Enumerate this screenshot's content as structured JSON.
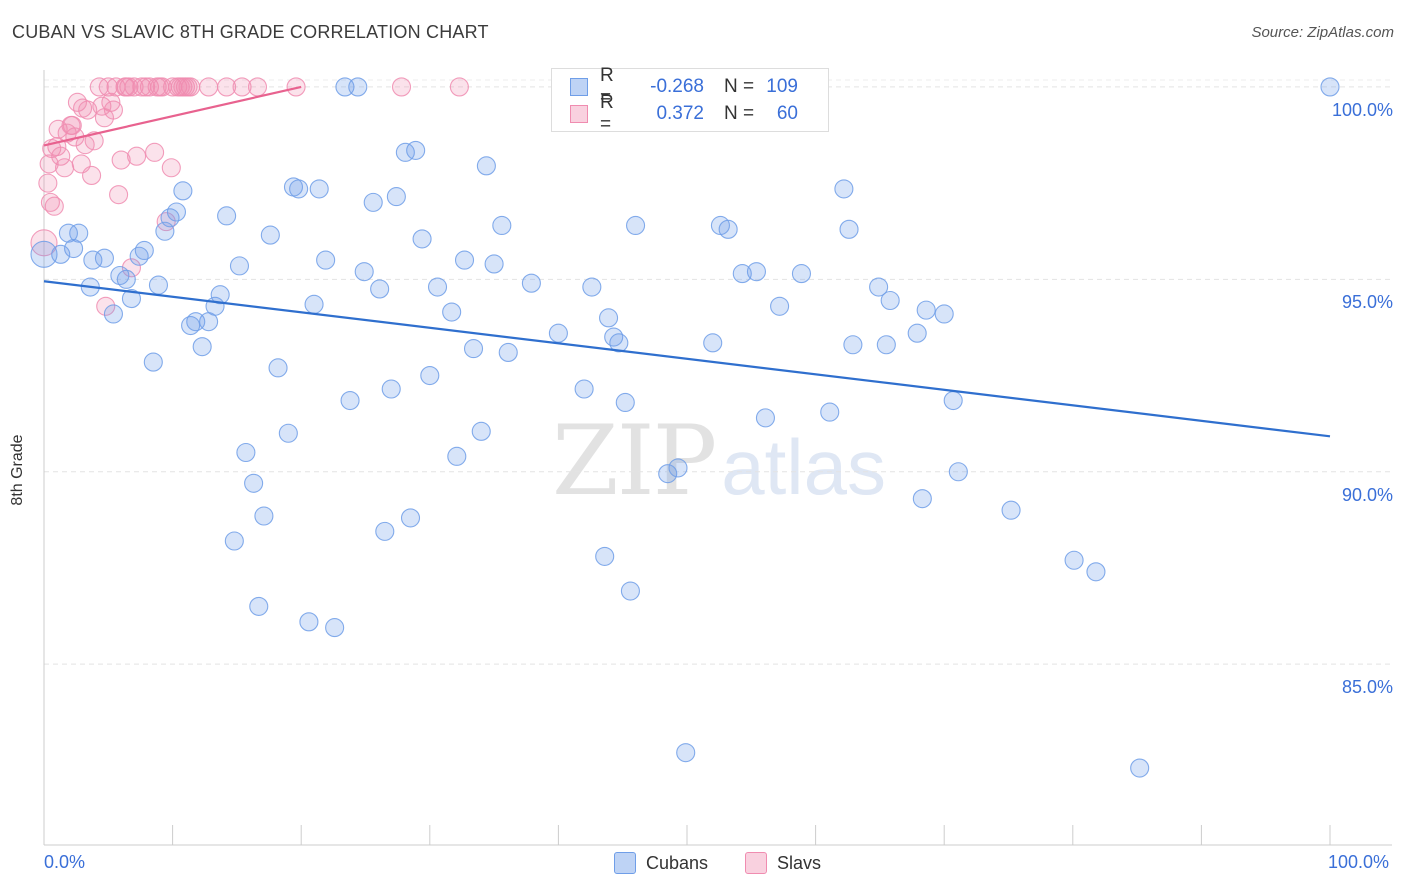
{
  "header": {
    "title": "CUBAN VS SLAVIC 8TH GRADE CORRELATION CHART",
    "source": "Source: ZipAtlas.com"
  },
  "watermark": {
    "zip": "ZIP",
    "atlas": "atlas"
  },
  "legend": {
    "rows": [
      {
        "r_label": "R =",
        "r_value": "-0.268",
        "n_label": "N =",
        "n_value": "109",
        "color": "#6f9ee8"
      },
      {
        "r_label": "R =",
        "r_value": "0.372",
        "n_label": "N =",
        "n_value": "60",
        "color": "#f08cb0"
      }
    ]
  },
  "bottom_legend": [
    {
      "label": "Cubans",
      "color": "#6f9ee8"
    },
    {
      "label": "Slavs",
      "color": "#f08cb0"
    }
  ],
  "chart_data": {
    "type": "scatter",
    "title": "CUBAN VS SLAVIC 8TH GRADE CORRELATION CHART",
    "xlabel": "",
    "ylabel": "8th Grade",
    "xlim": [
      0,
      100
    ],
    "ylim": [
      80.3,
      100.7
    ],
    "x_tick_labels": [
      "0.0%",
      "100.0%"
    ],
    "y_ticks": [
      100,
      95,
      90,
      85
    ],
    "y_tick_labels": [
      "100.0%",
      "95.0%",
      "90.0%",
      "85.0%"
    ],
    "grid": true,
    "legend_position": "top-center",
    "series": [
      {
        "name": "Cubans",
        "color": "#6f9ee8",
        "trend": {
          "x": [
            0,
            100
          ],
          "y": [
            94.95,
            90.92
          ]
        },
        "points": [
          [
            0,
            95.65
          ],
          [
            1.3,
            95.65
          ],
          [
            1.9,
            96.2
          ],
          [
            2.3,
            95.8
          ],
          [
            2.7,
            96.2
          ],
          [
            3.6,
            94.8
          ],
          [
            3.8,
            95.5
          ],
          [
            4.7,
            95.55
          ],
          [
            5.4,
            94.1
          ],
          [
            5.9,
            95.1
          ],
          [
            6.4,
            95.0
          ],
          [
            6.8,
            94.5
          ],
          [
            7.4,
            95.6
          ],
          [
            7.8,
            95.75
          ],
          [
            8.5,
            92.85
          ],
          [
            8.9,
            94.85
          ],
          [
            9.4,
            96.25
          ],
          [
            9.8,
            96.6
          ],
          [
            10.3,
            96.75
          ],
          [
            10.8,
            97.3
          ],
          [
            11.4,
            93.8
          ],
          [
            11.8,
            93.9
          ],
          [
            12.3,
            93.25
          ],
          [
            12.8,
            93.9
          ],
          [
            13.3,
            94.3
          ],
          [
            13.7,
            94.6
          ],
          [
            14.2,
            96.65
          ],
          [
            14.8,
            88.2
          ],
          [
            15.2,
            95.35
          ],
          [
            15.7,
            90.5
          ],
          [
            16.3,
            89.7
          ],
          [
            16.7,
            86.5
          ],
          [
            17.1,
            88.85
          ],
          [
            17.6,
            96.15
          ],
          [
            18.2,
            92.7
          ],
          [
            19.0,
            91.0
          ],
          [
            19.4,
            97.4
          ],
          [
            19.8,
            97.35
          ],
          [
            20.6,
            86.1
          ],
          [
            21.0,
            94.35
          ],
          [
            21.4,
            97.35
          ],
          [
            21.9,
            95.5
          ],
          [
            22.6,
            85.95
          ],
          [
            23.4,
            100.0
          ],
          [
            23.8,
            91.85
          ],
          [
            24.4,
            100.0
          ],
          [
            24.9,
            95.2
          ],
          [
            25.6,
            97.0
          ],
          [
            26.1,
            94.75
          ],
          [
            26.5,
            88.45
          ],
          [
            27.0,
            92.15
          ],
          [
            27.4,
            97.15
          ],
          [
            28.1,
            98.3
          ],
          [
            28.5,
            88.8
          ],
          [
            28.9,
            98.35
          ],
          [
            29.4,
            96.05
          ],
          [
            30.0,
            92.5
          ],
          [
            30.6,
            94.8
          ],
          [
            31.7,
            94.15
          ],
          [
            32.1,
            90.4
          ],
          [
            32.7,
            95.5
          ],
          [
            33.4,
            93.2
          ],
          [
            34.0,
            91.05
          ],
          [
            34.4,
            97.95
          ],
          [
            35.0,
            95.4
          ],
          [
            35.6,
            96.4
          ],
          [
            36.1,
            93.1
          ],
          [
            37.9,
            94.9
          ],
          [
            40.0,
            93.6
          ],
          [
            42.0,
            92.15
          ],
          [
            42.6,
            94.8
          ],
          [
            43.6,
            87.8
          ],
          [
            43.9,
            94.0
          ],
          [
            44.3,
            93.5
          ],
          [
            44.7,
            93.35
          ],
          [
            45.2,
            91.8
          ],
          [
            45.6,
            86.9
          ],
          [
            46.0,
            96.4
          ],
          [
            48.5,
            89.95
          ],
          [
            49.3,
            90.1
          ],
          [
            49.9,
            82.7
          ],
          [
            52.0,
            93.35
          ],
          [
            52.6,
            96.4
          ],
          [
            53.2,
            96.3
          ],
          [
            54.3,
            95.15
          ],
          [
            55.4,
            95.2
          ],
          [
            56.1,
            91.4
          ],
          [
            57.2,
            94.3
          ],
          [
            58.9,
            95.15
          ],
          [
            61.1,
            91.55
          ],
          [
            62.2,
            97.35
          ],
          [
            62.6,
            96.3
          ],
          [
            62.9,
            93.3
          ],
          [
            64.9,
            94.8
          ],
          [
            65.5,
            93.3
          ],
          [
            65.8,
            94.45
          ],
          [
            67.9,
            93.6
          ],
          [
            68.3,
            89.3
          ],
          [
            68.6,
            94.2
          ],
          [
            70.0,
            94.1
          ],
          [
            70.7,
            91.85
          ],
          [
            71.1,
            90.0
          ],
          [
            75.2,
            89.0
          ],
          [
            80.1,
            87.7
          ],
          [
            81.8,
            87.4
          ],
          [
            85.2,
            82.3
          ],
          [
            100.0,
            100.0
          ]
        ]
      },
      {
        "name": "Slavs",
        "color": "#f08cb0",
        "trend": {
          "x": [
            0,
            20
          ],
          "y": [
            98.48,
            100.0
          ]
        },
        "points": [
          [
            0,
            95.95
          ],
          [
            0.3,
            97.5
          ],
          [
            0.4,
            98.0
          ],
          [
            0.5,
            97.0
          ],
          [
            0.6,
            98.4
          ],
          [
            1.1,
            98.9
          ],
          [
            1.3,
            98.2
          ],
          [
            1.6,
            97.9
          ],
          [
            1.8,
            98.8
          ],
          [
            2.1,
            99.0
          ],
          [
            2.4,
            98.7
          ],
          [
            2.6,
            99.6
          ],
          [
            2.9,
            98.0
          ],
          [
            3.2,
            98.5
          ],
          [
            3.4,
            99.4
          ],
          [
            3.7,
            97.7
          ],
          [
            3.9,
            98.6
          ],
          [
            4.3,
            100.0
          ],
          [
            4.5,
            99.5
          ],
          [
            4.7,
            99.2
          ],
          [
            5.0,
            100.0
          ],
          [
            5.2,
            99.6
          ],
          [
            5.4,
            99.4
          ],
          [
            5.8,
            97.2
          ],
          [
            6.0,
            98.1
          ],
          [
            6.3,
            100.0
          ],
          [
            6.6,
            100.0
          ],
          [
            6.8,
            95.3
          ],
          [
            7.0,
            100.0
          ],
          [
            7.2,
            98.2
          ],
          [
            7.6,
            100.0
          ],
          [
            7.9,
            100.0
          ],
          [
            8.2,
            100.0
          ],
          [
            8.6,
            98.3
          ],
          [
            9.0,
            100.0
          ],
          [
            9.5,
            96.5
          ],
          [
            9.9,
            97.9
          ],
          [
            10.4,
            100.0
          ],
          [
            10.8,
            100.0
          ],
          [
            11.0,
            100.0
          ],
          [
            11.4,
            100.0
          ],
          [
            12.8,
            100.0
          ],
          [
            14.2,
            100.0
          ],
          [
            15.4,
            100.0
          ],
          [
            16.6,
            100.0
          ],
          [
            19.6,
            100.0
          ],
          [
            27.8,
            100.0
          ],
          [
            32.3,
            100.0
          ],
          [
            4.8,
            94.3
          ],
          [
            8.8,
            100.0
          ],
          [
            9.2,
            100.0
          ],
          [
            10.0,
            100.0
          ],
          [
            10.6,
            100.0
          ],
          [
            11.2,
            100.0
          ],
          [
            2.2,
            99.0
          ],
          [
            1.0,
            98.45
          ],
          [
            3.0,
            99.45
          ],
          [
            0.8,
            96.9
          ],
          [
            6.4,
            100.0
          ],
          [
            5.6,
            100.0
          ]
        ]
      }
    ]
  }
}
